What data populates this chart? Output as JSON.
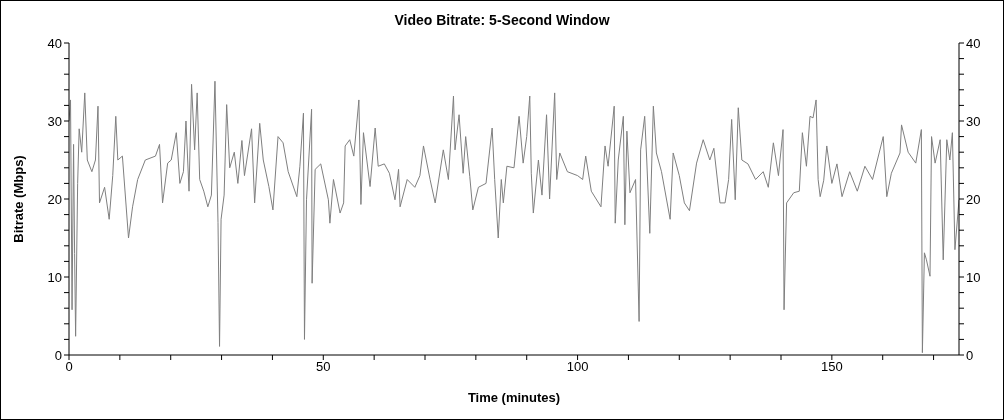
{
  "chart_data": {
    "type": "line",
    "title": "Video Bitrate: 5-Second Window",
    "xlabel": "Time (minutes)",
    "ylabel": "Bitrate (Mbps)",
    "color": "#7f7f7f",
    "x": [
      0,
      0.3,
      0.6,
      0.9,
      1.1,
      1.3,
      1.7,
      2.0,
      2.5,
      3.1,
      3.6,
      4.5,
      5.2,
      5.7,
      6.0,
      7.0,
      7.9,
      8.6,
      9.2,
      9.6,
      10.5,
      11.7,
      12.5,
      13.5,
      15,
      17,
      17.8,
      18.4,
      19.4,
      20.1,
      21.1,
      21.8,
      22.5,
      23.0,
      23.6,
      24.1,
      24.7,
      25.2,
      25.7,
      26.5,
      27.3,
      28.0,
      28.7,
      29.3,
      29.6,
      29.9,
      30.5,
      31.0,
      31.6,
      32.5,
      33.2,
      34.0,
      34.5,
      35.9,
      36.5,
      37.5,
      38.2,
      39.3,
      40.1,
      41.1,
      42.1,
      43.1,
      44.8,
      45.4,
      46.1,
      46.3,
      46.7,
      47.7,
      47.8,
      48.4,
      49.5,
      51.0,
      51.3,
      52.0,
      53.3,
      54.0,
      54.3,
      55.2,
      56.0,
      57.0,
      57.4,
      57.9,
      59.2,
      60.2,
      60.8,
      62.0,
      63.0,
      64.1,
      64.8,
      65.1,
      66.5,
      68.0,
      69.0,
      69.7,
      71.0,
      72.0,
      73.6,
      74.6,
      75.6,
      75.9,
      76.7,
      77.5,
      78.0,
      78.8,
      79.4,
      80.5,
      82.0,
      83.2,
      83.7,
      84.4,
      85.0,
      85.4,
      86.1,
      87.5,
      88.5,
      89.3,
      90.0,
      90.6,
      90.9,
      91.3,
      92.3,
      93.0,
      93.9,
      94.5,
      95.5,
      95.9,
      96.5,
      98.0,
      100.0,
      101.0,
      101.6,
      102.7,
      104.6,
      105.4,
      106.0,
      107.2,
      107.4,
      108.0,
      109.0,
      109.3,
      109.7,
      110.3,
      111.4,
      112.1,
      112.4,
      113.2,
      113.6,
      114.2,
      114.9,
      115.5,
      116.5,
      118.2,
      118.8,
      120.0,
      121.0,
      122.0,
      123.4,
      124.7,
      126.0,
      126.8,
      128.0,
      129.0,
      129.7,
      130.3,
      131.0,
      131.6,
      132.3,
      133.5,
      135.0,
      136.5,
      137.5,
      138.5,
      139.5,
      140.4,
      140.6,
      141.1,
      142.5,
      143.6,
      144.2,
      145.0,
      145.7,
      146.3,
      146.9,
      147.3,
      147.7,
      148.4,
      149.0,
      150.0,
      151.0,
      152.0,
      153.5,
      155.0,
      156.5,
      158.0,
      160.1,
      160.8,
      161.7,
      163.4,
      163.7,
      165.0,
      166.5,
      167.6,
      167.8,
      168.2,
      168.6,
      169.3,
      169.6,
      170.3,
      171.3,
      171.9,
      172.6,
      173.2,
      173.7,
      174.2,
      175.0
    ],
    "values": [
      30,
      32.7,
      5.8,
      27,
      13,
      2.4,
      22,
      29,
      26,
      33.6,
      25,
      23.5,
      25,
      31.9,
      19.5,
      21.5,
      17.4,
      23,
      30.6,
      25,
      25.5,
      15,
      19,
      22.5,
      25,
      25.5,
      27,
      19.5,
      24.6,
      25,
      28.5,
      22,
      23.5,
      30,
      21,
      34.7,
      26.3,
      33.6,
      22.5,
      21,
      19,
      20.5,
      35.1,
      17,
      1.1,
      17.4,
      20.5,
      32.1,
      24,
      26,
      22,
      27.5,
      23,
      29,
      19.5,
      29.7,
      25,
      21.6,
      18.6,
      28,
      27.2,
      23.5,
      20.3,
      24.2,
      31,
      2,
      19.9,
      31.5,
      9.2,
      23.8,
      24.5,
      19.9,
      16.9,
      22.5,
      18.2,
      19.5,
      26.8,
      27.6,
      25.5,
      32.7,
      19.3,
      28.5,
      21.6,
      29.1,
      24.2,
      24.5,
      23.3,
      19.9,
      23.8,
      19,
      22.5,
      21.5,
      23,
      26.8,
      22.5,
      19.5,
      26.3,
      22.5,
      33.2,
      26.3,
      30.8,
      23.3,
      28,
      22.9,
      18.6,
      21.5,
      22,
      29.1,
      22.5,
      15,
      22.5,
      19.5,
      24.2,
      24,
      30.6,
      24.6,
      28,
      33.2,
      23.3,
      18.2,
      25,
      20.5,
      30.8,
      20,
      33.6,
      22.5,
      25.9,
      23.5,
      23,
      22.5,
      25.5,
      21,
      19,
      26.8,
      24.2,
      31.9,
      16.9,
      25,
      30.6,
      16.7,
      28.7,
      20.8,
      22.5,
      4.3,
      26.3,
      30.6,
      25,
      15.6,
      31.9,
      25.9,
      23.5,
      17.4,
      25.9,
      23,
      19.5,
      18.5,
      24.6,
      27.6,
      25,
      26.5,
      19.5,
      19.5,
      22.5,
      30.2,
      19.9,
      31.7,
      25,
      24.5,
      22.5,
      23.5,
      21.5,
      27.2,
      23,
      28.9,
      5.8,
      19.5,
      20.8,
      21,
      28.5,
      24.2,
      30.6,
      30.4,
      32.7,
      22.5,
      20.3,
      22.4,
      26.8,
      22,
      24.5,
      20.3,
      23.5,
      21,
      24.2,
      22.5,
      28,
      20.3,
      23.3,
      25.9,
      29.5,
      26,
      24.6,
      28.9,
      0.3,
      13.1,
      12.2,
      10.1,
      28,
      24.6,
      27.6,
      12.2,
      27.6,
      25,
      28.5,
      13.5,
      19.9
    ],
    "xlim": [
      0,
      175
    ],
    "xticks": [
      0,
      {
        "value": 10,
        "label": null
      },
      {
        "value": 20,
        "label": null
      },
      {
        "value": 30,
        "label": null
      },
      {
        "value": 40,
        "label": null
      },
      50,
      {
        "value": 60,
        "label": null
      },
      {
        "value": 70,
        "label": null
      },
      {
        "value": 80,
        "label": null
      },
      {
        "value": 90,
        "label": null
      },
      100,
      {
        "value": 110,
        "label": null
      },
      {
        "value": 120,
        "label": null
      },
      {
        "value": 130,
        "label": null
      },
      {
        "value": 140,
        "label": null
      },
      150,
      {
        "value": 160,
        "label": null
      },
      {
        "value": 170,
        "label": null
      }
    ],
    "ylim": [
      0,
      40
    ],
    "yticks": [
      0,
      {
        "value": 2,
        "label": null
      },
      {
        "value": 4,
        "label": null
      },
      {
        "value": 6,
        "label": null
      },
      {
        "value": 8,
        "label": null
      },
      10,
      {
        "value": 12,
        "label": null
      },
      {
        "value": 14,
        "label": null
      },
      {
        "value": 16,
        "label": null
      },
      {
        "value": 18,
        "label": null
      },
      20,
      {
        "value": 22,
        "label": null
      },
      {
        "value": 24,
        "label": null
      },
      {
        "value": 26,
        "label": null
      },
      {
        "value": 28,
        "label": null
      },
      30,
      {
        "value": 32,
        "label": null
      },
      {
        "value": 34,
        "label": null
      },
      {
        "value": 36,
        "label": null
      },
      {
        "value": 38,
        "label": null
      },
      40
    ],
    "y2lim": [
      0,
      40
    ],
    "y2ticks": [
      0,
      {
        "value": 2,
        "label": null
      },
      {
        "value": 4,
        "label": null
      },
      {
        "value": 6,
        "label": null
      },
      {
        "value": 8,
        "label": null
      },
      10,
      {
        "value": 12,
        "label": null
      },
      {
        "value": 14,
        "label": null
      },
      {
        "value": 16,
        "label": null
      },
      {
        "value": 18,
        "label": null
      },
      20,
      {
        "value": 22,
        "label": null
      },
      {
        "value": 24,
        "label": null
      },
      {
        "value": 26,
        "label": null
      },
      {
        "value": 28,
        "label": null
      },
      30,
      {
        "value": 32,
        "label": null
      },
      {
        "value": 34,
        "label": null
      },
      {
        "value": 36,
        "label": null
      },
      {
        "value": 38,
        "label": null
      },
      40
    ]
  }
}
